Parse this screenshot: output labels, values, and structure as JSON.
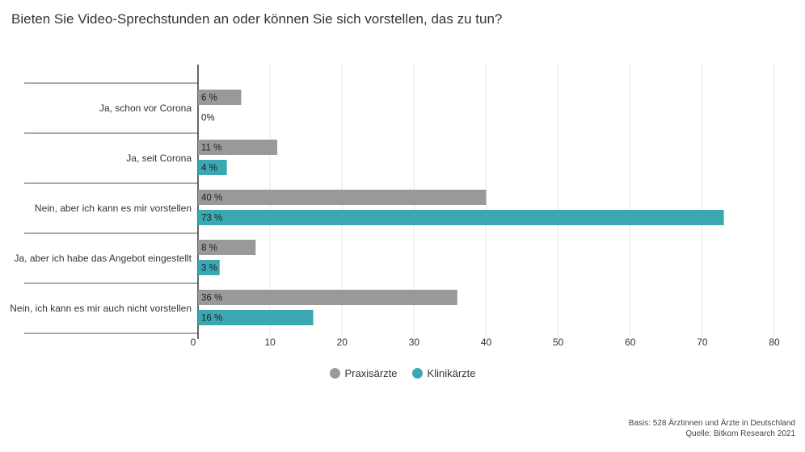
{
  "title": "Bieten Sie Video-Sprechstunden an oder können Sie sich vorstellen, das zu tun?",
  "colors": {
    "praxis": "#999999",
    "klinik": "#3aa7b2",
    "grid": "#e6e6e6",
    "axis": "#333333",
    "separator": "#555555"
  },
  "chart_data": {
    "type": "bar",
    "orientation": "horizontal",
    "categories": [
      "Ja, schon vor Corona",
      "Ja, seit Corona",
      "Nein, aber ich kann es mir vorstellen",
      "Ja, aber ich habe das Angebot eingestellt",
      "Nein, ich kann es mir auch nicht vorstellen"
    ],
    "series": [
      {
        "name": "Praxisärzte",
        "values": [
          6,
          11,
          40,
          8,
          36
        ],
        "labels": [
          "6 %",
          "11 %",
          "40 %",
          "8 %",
          "36 %"
        ]
      },
      {
        "name": "Klinikärzte",
        "values": [
          0,
          4,
          73,
          3,
          16
        ],
        "labels": [
          "0%",
          "4 %",
          "73 %",
          "3 %",
          "16 %"
        ]
      }
    ],
    "xlim": [
      0,
      80
    ],
    "xticks": [
      0,
      10,
      20,
      30,
      40,
      50,
      60,
      70,
      80
    ],
    "grid": true,
    "legend_position": "bottom"
  },
  "legend": [
    {
      "label": "Praxisärzte"
    },
    {
      "label": "Klinikärzte"
    }
  ],
  "footnote": {
    "line1": "Basis: 528 Ärztinnen und Ärzte in Deutschland",
    "line2": "Quelle: Bitkom Research 2021"
  }
}
